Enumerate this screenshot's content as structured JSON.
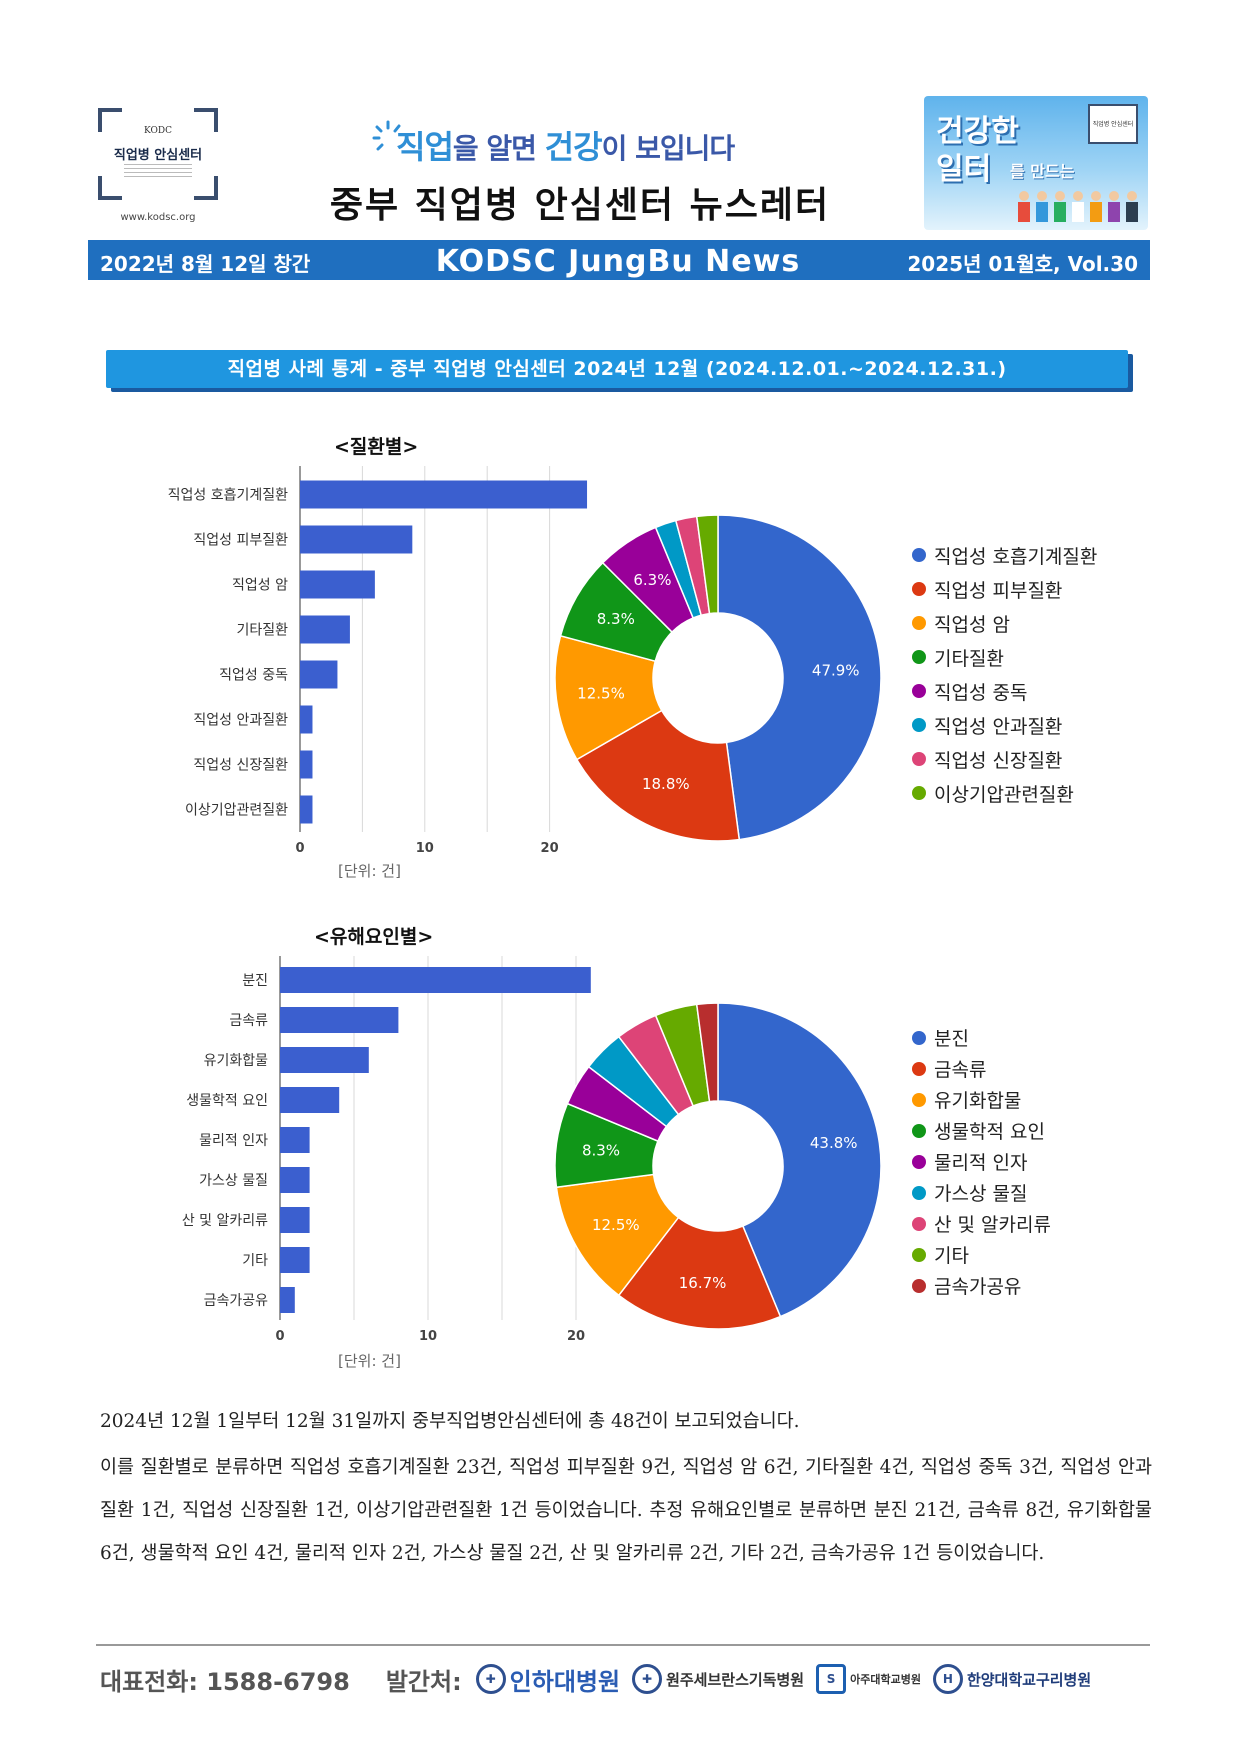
{
  "header": {
    "logo_abbr": "KODC",
    "logo_name": "직업병 안심센터",
    "logo_url": "www.kodsc.org",
    "slogan_parts": [
      "직업",
      "을 알면 ",
      "건강",
      "이 보입니다"
    ],
    "title": "중부 직업병 안심센터 뉴스레터",
    "badge_line1": "건강한",
    "badge_line2": "일터",
    "badge_line2_suffix": "를 만드는",
    "badge_logo_text": "직업병 안심센터"
  },
  "band": {
    "left": "2022년 8월 12일 창간",
    "center": "KODSC JungBu News",
    "right": "2025년 01월호, Vol.30"
  },
  "stats_banner": "직업병 사례 통계 - 중부 직업병 안심센터 2024년 12월 (2024.12.01.~2024.12.31.)",
  "chart_data": [
    {
      "type": "bar",
      "title": "<질환별>",
      "orientation": "horizontal",
      "categories": [
        "직업성 호흡기계질환",
        "직업성 피부질환",
        "직업성 암",
        "기타질환",
        "직업성 중독",
        "직업성 안과질환",
        "직업성 신장질환",
        "이상기압관련질환"
      ],
      "values": [
        23,
        9,
        6,
        4,
        3,
        1,
        1,
        1
      ],
      "xticks": [
        0,
        10,
        20
      ],
      "xlim": [
        0,
        25
      ],
      "unit_label": "[단위: 건]",
      "grid": true,
      "bar_color": "#3b5fcf"
    },
    {
      "type": "pie",
      "style": "donut",
      "categories": [
        "직업성 호흡기계질환",
        "직업성 피부질환",
        "직업성 암",
        "기타질환",
        "직업성 중독",
        "직업성 안과질환",
        "직업성 신장질환",
        "이상기압관련질환"
      ],
      "values": [
        23,
        9,
        6,
        4,
        3,
        1,
        1,
        1
      ],
      "slice_labels": [
        "47.9%",
        "18.8%",
        "12.5%",
        "8.3%",
        "6.3%",
        "",
        "",
        ""
      ],
      "colors": [
        "#3366cc",
        "#dc3912",
        "#ff9900",
        "#109618",
        "#990099",
        "#0099c6",
        "#dd4477",
        "#66aa00"
      ],
      "legend": "right"
    },
    {
      "type": "bar",
      "title": "<유해요인별>",
      "orientation": "horizontal",
      "categories": [
        "분진",
        "금속류",
        "유기화합물",
        "생물학적 요인",
        "물리적 인자",
        "가스상 물질",
        "산 및 알카리류",
        "기타",
        "금속가공유"
      ],
      "values": [
        21,
        8,
        6,
        4,
        2,
        2,
        2,
        2,
        1
      ],
      "xticks": [
        0,
        10,
        20
      ],
      "xlim": [
        0,
        25
      ],
      "unit_label": "[단위: 건]",
      "grid": true,
      "bar_color": "#3b5fcf"
    },
    {
      "type": "pie",
      "style": "donut",
      "categories": [
        "분진",
        "금속류",
        "유기화합물",
        "생물학적 요인",
        "물리적 인자",
        "가스상 물질",
        "산 및 알카리류",
        "기타",
        "금속가공유"
      ],
      "values": [
        21,
        8,
        6,
        4,
        2,
        2,
        2,
        2,
        1
      ],
      "slice_labels": [
        "43.8%",
        "16.7%",
        "12.5%",
        "8.3%",
        "",
        "",
        "",
        "",
        ""
      ],
      "colors": [
        "#3366cc",
        "#dc3912",
        "#ff9900",
        "#109618",
        "#990099",
        "#0099c6",
        "#dd4477",
        "#66aa00",
        "#b82e2e"
      ],
      "legend": "right"
    }
  ],
  "body": {
    "p1": "2024년 12월 1일부터 12월 31일까지 중부직업병안심센터에 총 48건이 보고되었습니다.",
    "p2": "이를 질환별로 분류하면 직업성 호흡기계질환 23건, 직업성 피부질환 9건, 직업성 암 6건, 기타질환 4건, 직업성 중독 3건, 직업성 안과질환 1건, 직업성 신장질환 1건, 이상기압관련질환 1건 등이었습니다. 추정 유해요인별로 분류하면 분진 21건, 금속류 8건, 유기화합물 6건, 생물학적 요인 4건, 물리적 인자 2건, 가스상 물질 2건, 산 및 알카리류 2건, 기타 2건, 금속가공유 1건 등이었습니다."
  },
  "footer": {
    "phone": "대표전화: 1588-6798",
    "publisher_label": "발간처:",
    "hospitals": [
      "인하대병원",
      "원주세브란스기독병원",
      "아주대학교병원",
      "한양대학교구리병원"
    ]
  }
}
